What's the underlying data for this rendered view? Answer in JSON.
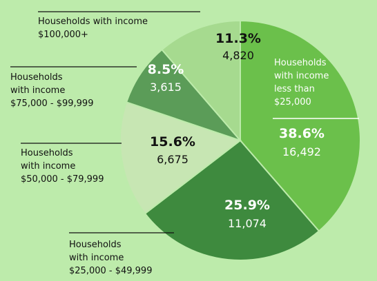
{
  "chart_data": {
    "type": "pie",
    "categories": [
      "Households\nwith income\nless than\n$25,000",
      "Households\nwith income\n$25,000 - $49,999",
      "Households\nwith income\n$50,000 - $79,999",
      "Households\nwith income\n$75,000 - $99,999",
      "Households with income\n$100,000+"
    ],
    "values": [
      38.6,
      25.9,
      15.6,
      8.5,
      11.3
    ],
    "value_labels": [
      "38.6%",
      "25.9%",
      "15.6%",
      "8.5%",
      "11.3%"
    ],
    "counts": [
      16492,
      11074,
      6675,
      3615,
      4820
    ],
    "count_labels": [
      "16,492",
      "11,074",
      "6,675",
      "3,615",
      "4,820"
    ],
    "colors": [
      "#6bc04b",
      "#3e8a3e",
      "#c7e6b3",
      "#5b9c58",
      "#a6da8f"
    ],
    "label_colors": [
      "#ffffff",
      "#ffffff",
      "#111111",
      "#ffffff",
      "#111111"
    ]
  }
}
